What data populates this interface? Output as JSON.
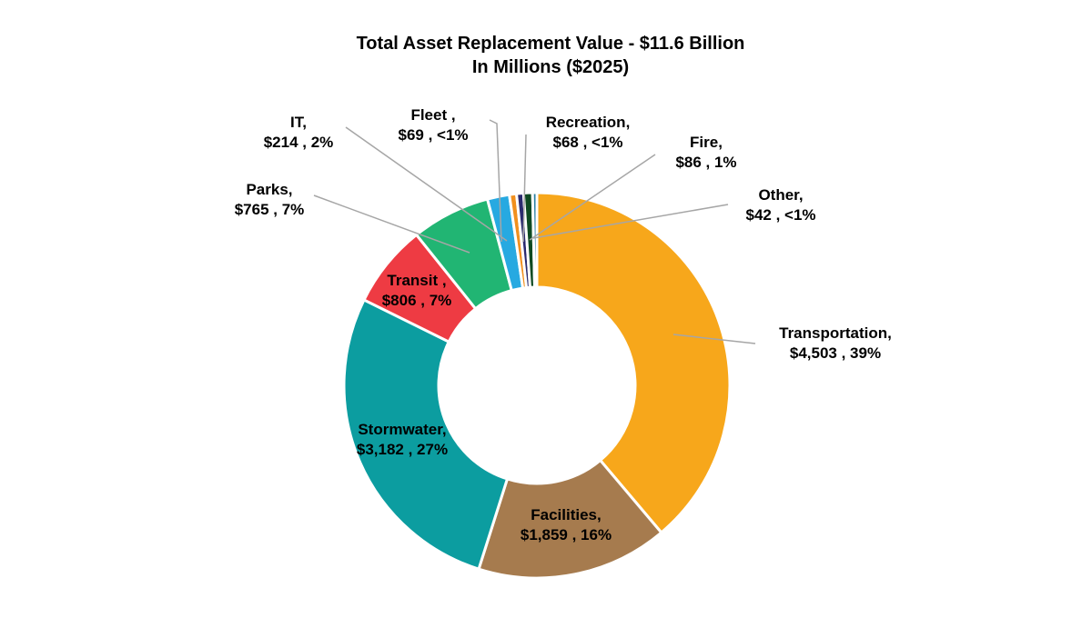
{
  "chart_data": {
    "type": "pie",
    "donut": true,
    "title": "Total Asset Replacement Value - $11.6 Billion",
    "subtitle": "In Millions ($2025)",
    "slices": [
      {
        "name": "Transportation",
        "value": 4503,
        "label": [
          "Transportation,",
          "$4,503 , 39%"
        ],
        "color": "#F7A71B"
      },
      {
        "name": "Facilities",
        "value": 1859,
        "label": [
          "Facilities,",
          "$1,859 , 16%"
        ],
        "color": "#A67B4E"
      },
      {
        "name": "Stormwater",
        "value": 3182,
        "label": [
          "Stormwater,",
          "$3,182 , 27%"
        ],
        "color": "#0C9DA0"
      },
      {
        "name": "Transit",
        "value": 806,
        "label": [
          "Transit ,",
          "$806 , 7%"
        ],
        "color": "#EE3B43"
      },
      {
        "name": "Parks",
        "value": 765,
        "label": [
          "Parks,",
          "$765 , 7%"
        ],
        "color": "#21B573"
      },
      {
        "name": "IT",
        "value": 214,
        "label": [
          "IT,",
          "$214 , 2%"
        ],
        "color": "#27A9E1"
      },
      {
        "name": "Fleet",
        "value": 69,
        "label": [
          "Fleet ,",
          "$69 , <1%"
        ],
        "color": "#F1901E"
      },
      {
        "name": "Recreation",
        "value": 68,
        "label": [
          "Recreation,",
          "$68 , <1%"
        ],
        "color": "#2B2A6E"
      },
      {
        "name": "Fire",
        "value": 86,
        "label": [
          "Fire,",
          "$86 , 1%"
        ],
        "color": "#0E4A22"
      },
      {
        "name": "Other",
        "value": 42,
        "label": [
          "Other,",
          "$42 , <1%"
        ],
        "color": "#2A7FA0"
      }
    ],
    "legend": "none"
  }
}
